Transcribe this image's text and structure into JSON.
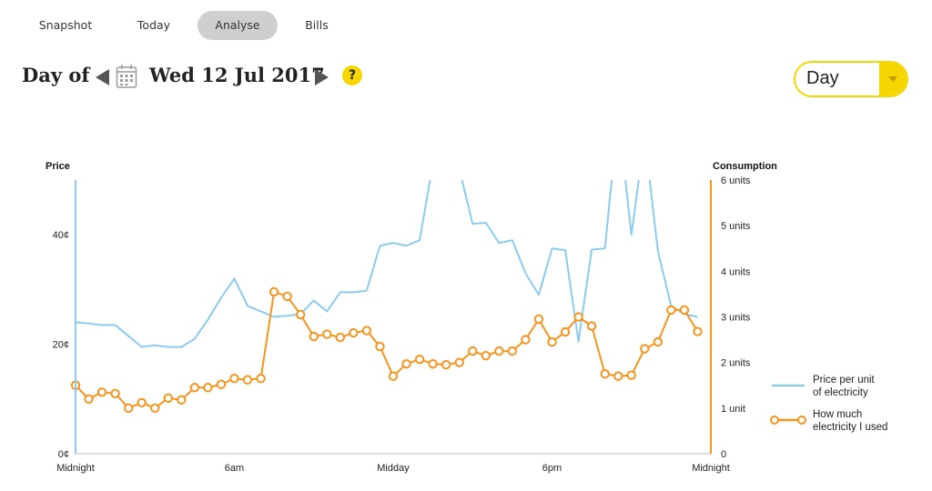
{
  "tabs": [
    {
      "label": "Snapshot",
      "active": false
    },
    {
      "label": "Today",
      "active": false
    },
    {
      "label": "Analyse",
      "active": true
    },
    {
      "label": "Bills",
      "active": false
    }
  ],
  "header": {
    "day_of_label": "Day of",
    "date": "Wed 12 Jul 2017",
    "help_label": "?",
    "calendar_icon": "calendar-icon"
  },
  "period_select": {
    "value": "Day"
  },
  "colors": {
    "price": "#8ccbf0",
    "consumption": "#f7941d",
    "accent": "#f6d600",
    "axis_left": "#8ccbf0",
    "axis_right": "#f7941d"
  },
  "chart_data": {
    "type": "line",
    "x_ticks": [
      "Midnight",
      "6am",
      "Midday",
      "6pm",
      "Midnight"
    ],
    "x_range": [
      0,
      24
    ],
    "left_axis": {
      "title": "Price",
      "ticks": [
        "0¢",
        "20¢",
        "40¢"
      ],
      "range": [
        0,
        50
      ]
    },
    "right_axis": {
      "title": "Consumption",
      "ticks": [
        "0",
        "1 unit",
        "2 units",
        "3 units",
        "4 units",
        "5 units",
        "6 units"
      ],
      "range": [
        0,
        6
      ]
    },
    "series": [
      {
        "name": "Price per unit of electricity",
        "name_lines": [
          "Price per unit",
          "of electricity"
        ],
        "axis": "left",
        "x": [
          0,
          0.5,
          1,
          1.5,
          2,
          2.5,
          3,
          3.5,
          4,
          4.5,
          5,
          5.5,
          6,
          6.5,
          7,
          7.5,
          8,
          8.5,
          9,
          9.5,
          10,
          10.5,
          11,
          11.5,
          12,
          12.5,
          13,
          13.5,
          14,
          14.5,
          15,
          15.5,
          16,
          16.5,
          17,
          17.5,
          18,
          18.5,
          19,
          19.5,
          20,
          20.5,
          21,
          21.5,
          22,
          22.5,
          23,
          23.5
        ],
        "values": [
          24,
          23.8,
          23.5,
          23.5,
          21.5,
          19.5,
          19.8,
          19.5,
          19.5,
          21,
          24.5,
          28.5,
          32,
          27,
          26,
          25,
          25.2,
          25.5,
          28,
          26,
          29.5,
          29.5,
          29.8,
          38,
          38.5,
          38,
          39,
          53,
          58,
          52,
          42,
          42.2,
          38.5,
          39,
          33,
          29,
          37.5,
          37.2,
          20.5,
          37.3,
          37.5,
          62,
          40,
          58,
          37,
          27,
          25.5,
          25
        ]
      },
      {
        "name": "How much electricity I used",
        "name_lines": [
          "How much",
          "electricity I used"
        ],
        "axis": "right",
        "x": [
          0,
          0.5,
          1,
          1.5,
          2,
          2.5,
          3,
          3.5,
          4,
          4.5,
          5,
          5.5,
          6,
          6.5,
          7,
          7.5,
          8,
          8.5,
          9,
          9.5,
          10,
          10.5,
          11,
          11.5,
          12,
          12.5,
          13,
          13.5,
          14,
          14.5,
          15,
          15.5,
          16,
          16.5,
          17,
          17.5,
          18,
          18.5,
          19,
          19.5,
          20,
          20.5,
          21,
          21.5,
          22,
          22.5,
          23,
          23.5
        ],
        "values": [
          1.5,
          1.2,
          1.35,
          1.32,
          1.0,
          1.12,
          1.0,
          1.22,
          1.18,
          1.45,
          1.45,
          1.52,
          1.65,
          1.62,
          1.65,
          3.55,
          3.45,
          3.05,
          2.57,
          2.62,
          2.55,
          2.65,
          2.7,
          2.35,
          1.7,
          1.97,
          2.07,
          1.97,
          1.95,
          2.0,
          2.25,
          2.15,
          2.25,
          2.25,
          2.5,
          2.95,
          2.45,
          2.67,
          3.0,
          2.8,
          1.75,
          1.7,
          1.72,
          2.3,
          2.45,
          3.15,
          3.15,
          2.68
        ]
      }
    ],
    "grid": false,
    "legend": "bottom-right"
  }
}
